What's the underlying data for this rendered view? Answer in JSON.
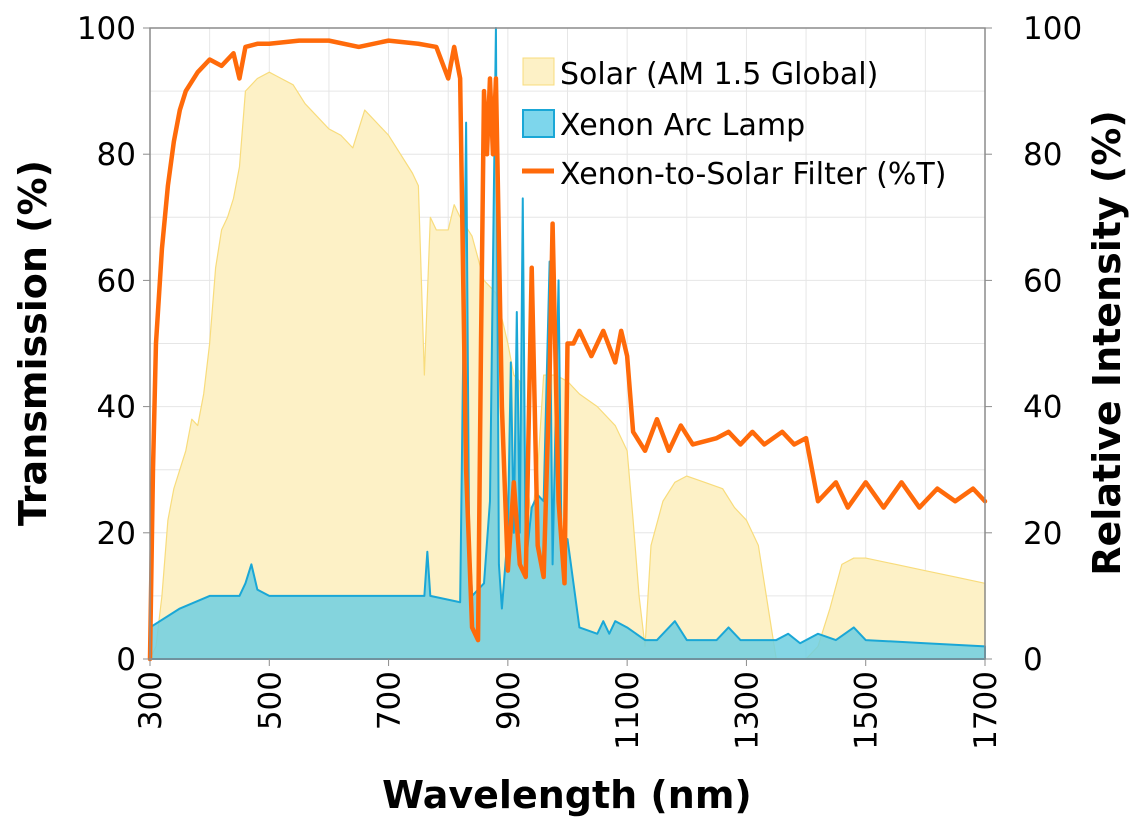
{
  "chart_data": {
    "type": "area",
    "title": "",
    "xlabel": "Wavelength (nm)",
    "ylabel": "Transmission (%)",
    "y2label": "Relative Intensity (%)",
    "xlim": [
      300,
      1700
    ],
    "ylim": [
      0,
      100
    ],
    "y2lim": [
      0,
      100
    ],
    "xticks": [
      300,
      500,
      700,
      900,
      1100,
      1300,
      1500,
      1700
    ],
    "yticks": [
      0,
      20,
      40,
      60,
      80,
      100
    ],
    "y2ticks": [
      0,
      20,
      40,
      60,
      80,
      100
    ],
    "grid": true,
    "legend_position": "top-right",
    "series": [
      {
        "name": "Solar (AM 1.5 Global)",
        "kind": "area",
        "axis": "right",
        "fill": "#fdf1c6",
        "stroke": "#f8dc7c",
        "x": [
          300,
          310,
          320,
          330,
          340,
          350,
          360,
          370,
          380,
          390,
          400,
          410,
          420,
          430,
          440,
          450,
          460,
          480,
          500,
          520,
          540,
          560,
          580,
          600,
          620,
          640,
          660,
          680,
          700,
          720,
          740,
          750,
          760,
          770,
          780,
          800,
          810,
          820,
          840,
          860,
          880,
          900,
          910,
          920,
          930,
          940,
          950,
          960,
          980,
          1000,
          1020,
          1050,
          1080,
          1100,
          1110,
          1120,
          1130,
          1140,
          1160,
          1180,
          1200,
          1230,
          1260,
          1280,
          1300,
          1320,
          1340,
          1350,
          1400,
          1420,
          1440,
          1460,
          1480,
          1500,
          1550,
          1600,
          1650,
          1700
        ],
        "y": [
          0,
          2,
          10,
          22,
          27,
          30,
          33,
          38,
          37,
          42,
          50,
          62,
          68,
          70,
          73,
          78,
          90,
          92,
          93,
          92,
          91,
          88,
          86,
          84,
          83,
          81,
          87,
          85,
          83,
          80,
          77,
          75,
          45,
          70,
          68,
          68,
          72,
          70,
          67,
          60,
          58,
          50,
          45,
          44,
          30,
          22,
          30,
          45,
          45,
          44,
          42,
          40,
          37,
          33,
          22,
          10,
          2,
          18,
          25,
          28,
          29,
          28,
          27,
          24,
          22,
          18,
          6,
          0,
          0,
          2,
          8,
          15,
          16,
          16,
          15,
          14,
          13,
          12
        ]
      },
      {
        "name": "Xenon Arc Lamp",
        "kind": "area",
        "axis": "right",
        "fill": "#6fcfe0",
        "stroke": "#1aa7d6",
        "x": [
          300,
          350,
          400,
          450,
          460,
          470,
          480,
          500,
          600,
          700,
          760,
          765,
          770,
          820,
          830,
          835,
          840,
          860,
          870,
          880,
          885,
          890,
          900,
          905,
          910,
          915,
          920,
          925,
          930,
          940,
          950,
          960,
          970,
          975,
          985,
          990,
          1000,
          1010,
          1020,
          1050,
          1060,
          1070,
          1080,
          1100,
          1130,
          1150,
          1180,
          1200,
          1250,
          1270,
          1290,
          1350,
          1370,
          1390,
          1420,
          1450,
          1480,
          1500,
          1600,
          1700
        ],
        "y": [
          5,
          8,
          10,
          10,
          12,
          15,
          11,
          10,
          10,
          10,
          10,
          17,
          10,
          9,
          85,
          20,
          10,
          12,
          25,
          100,
          15,
          8,
          20,
          47,
          20,
          55,
          20,
          73,
          15,
          24,
          26,
          25,
          63,
          15,
          60,
          18,
          19,
          12,
          5,
          4,
          6,
          4,
          6,
          5,
          3,
          3,
          6,
          3,
          3,
          5,
          3,
          3,
          4,
          2.5,
          4,
          3,
          5,
          3,
          2.5,
          2
        ]
      },
      {
        "name": "Xenon-to-Solar Filter (%T)",
        "kind": "line",
        "axis": "left",
        "stroke": "#ff6a0a",
        "x": [
          300,
          305,
          310,
          320,
          330,
          340,
          350,
          360,
          380,
          400,
          420,
          440,
          450,
          460,
          480,
          500,
          550,
          600,
          650,
          700,
          750,
          780,
          800,
          810,
          820,
          830,
          840,
          850,
          855,
          860,
          865,
          870,
          875,
          880,
          890,
          900,
          910,
          920,
          930,
          940,
          950,
          960,
          970,
          975,
          985,
          995,
          1000,
          1010,
          1020,
          1040,
          1060,
          1080,
          1090,
          1100,
          1110,
          1130,
          1150,
          1170,
          1190,
          1210,
          1250,
          1270,
          1290,
          1310,
          1330,
          1360,
          1380,
          1400,
          1420,
          1450,
          1470,
          1500,
          1530,
          1560,
          1590,
          1620,
          1650,
          1680,
          1700
        ],
        "y": [
          0,
          30,
          50,
          65,
          75,
          82,
          87,
          90,
          93,
          95,
          94,
          96,
          92,
          97,
          97.5,
          97.5,
          98,
          98,
          97,
          98,
          97.5,
          97,
          92,
          97,
          92,
          30,
          5,
          3,
          50,
          90,
          80,
          92,
          80,
          92,
          40,
          14,
          28,
          15,
          13,
          62,
          18,
          13,
          45,
          69,
          25,
          12,
          50,
          50,
          52,
          48,
          52,
          47,
          52,
          48,
          36,
          33,
          38,
          33,
          37,
          34,
          35,
          36,
          34,
          36,
          34,
          36,
          34,
          35,
          25,
          28,
          24,
          28,
          24,
          28,
          24,
          27,
          25,
          27,
          25
        ]
      }
    ]
  }
}
